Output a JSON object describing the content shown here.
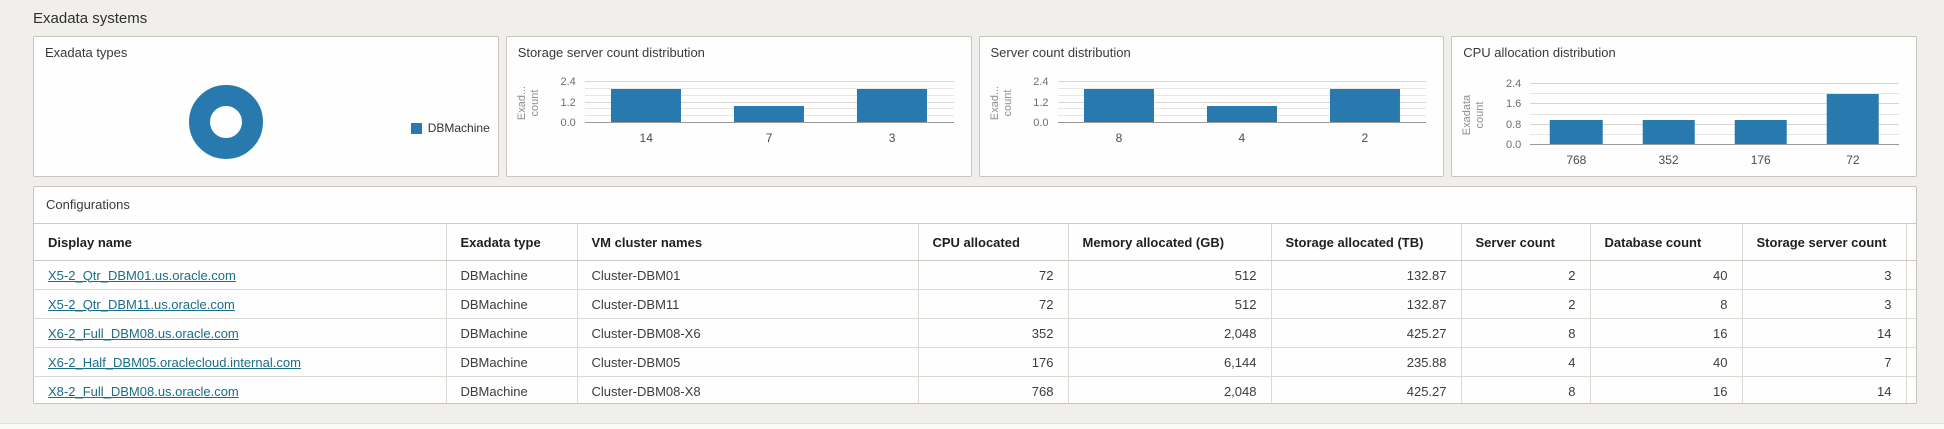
{
  "page": {
    "title": "Exadata systems"
  },
  "colors": {
    "accent_blue": "#2779ae",
    "link": "#1a6e88"
  },
  "chart_data": [
    {
      "type": "pie",
      "title": "Exadata types",
      "donut": true,
      "series": [
        {
          "name": "DBMachine",
          "value": 5
        }
      ],
      "colors": [
        "#2779ae"
      ],
      "legend_position": "right"
    },
    {
      "type": "bar",
      "title": "Storage server count distribution",
      "categories": [
        "14",
        "7",
        "3"
      ],
      "values": [
        2,
        1,
        2
      ],
      "ylabel": "Exadata count",
      "ylabel_lines": [
        "Exad...",
        "count"
      ],
      "yticks": [
        0.0,
        1.2,
        2.4
      ],
      "ylim": [
        0,
        2.4
      ],
      "grid": true,
      "bar_color": "#2779ae"
    },
    {
      "type": "bar",
      "title": "Server count distribution",
      "categories": [
        "8",
        "4",
        "2"
      ],
      "values": [
        2,
        1,
        2
      ],
      "ylabel": "Exadata count",
      "ylabel_lines": [
        "Exad...",
        "count"
      ],
      "yticks": [
        0.0,
        1.2,
        2.4
      ],
      "ylim": [
        0,
        2.4
      ],
      "grid": true,
      "bar_color": "#2779ae"
    },
    {
      "type": "bar",
      "title": "CPU allocation distribution",
      "categories": [
        "768",
        "352",
        "176",
        "72"
      ],
      "values": [
        1,
        1,
        1,
        2
      ],
      "ylabel": "Exadata count",
      "ylabel_lines": [
        "Exadata",
        "count"
      ],
      "yticks": [
        0.0,
        0.8,
        1.6,
        2.4
      ],
      "ylim": [
        0,
        2.4
      ],
      "grid": true,
      "bar_color": "#2779ae"
    }
  ],
  "table": {
    "title": "Configurations",
    "columns": [
      "Display name",
      "Exadata type",
      "VM cluster names",
      "CPU allocated",
      "Memory allocated (GB)",
      "Storage allocated (TB)",
      "Server count",
      "Database count",
      "Storage server count"
    ],
    "rows": [
      [
        "X5-2_Qtr_DBM01.us.oracle.com",
        "DBMachine",
        "Cluster-DBM01",
        "72",
        "512",
        "132.87",
        "2",
        "40",
        "3"
      ],
      [
        "X5-2_Qtr_DBM11.us.oracle.com",
        "DBMachine",
        "Cluster-DBM11",
        "72",
        "512",
        "132.87",
        "2",
        "8",
        "3"
      ],
      [
        "X6-2_Full_DBM08.us.oracle.com",
        "DBMachine",
        "Cluster-DBM08-X6",
        "352",
        "2,048",
        "425.27",
        "8",
        "16",
        "14"
      ],
      [
        "X6-2_Half_DBM05.oraclecloud.internal.com",
        "DBMachine",
        "Cluster-DBM05",
        "176",
        "6,144",
        "235.88",
        "4",
        "40",
        "7"
      ],
      [
        "X8-2_Full_DBM08.us.oracle.com",
        "DBMachine",
        "Cluster-DBM08-X8",
        "768",
        "2,048",
        "425.27",
        "8",
        "16",
        "14"
      ]
    ]
  }
}
